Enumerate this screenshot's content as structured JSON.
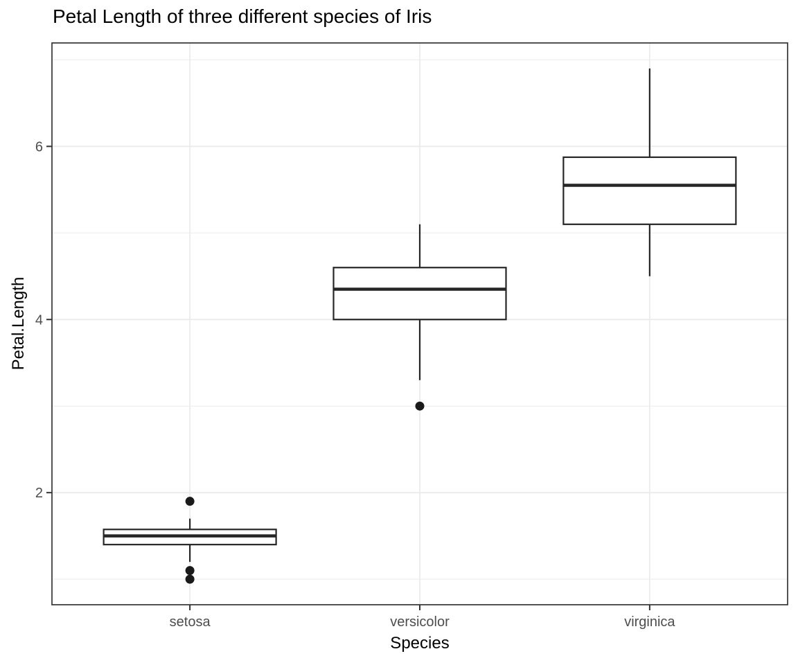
{
  "chart_data": {
    "type": "boxplot",
    "title": "Petal Length of three different species of Iris",
    "xlabel": "Species",
    "ylabel": "Petal.Length",
    "categories": [
      "setosa",
      "versicolor",
      "virginica"
    ],
    "y_ticks": [
      2,
      4,
      6
    ],
    "y_minor_ticks": [
      1,
      3,
      5,
      7
    ],
    "ylim": [
      0.705,
      7.195
    ],
    "grid": "major-and-minor",
    "legend": "none",
    "series": [
      {
        "name": "setosa",
        "whisker_low": 1.2,
        "q1": 1.4,
        "median": 1.5,
        "q3": 1.575,
        "whisker_high": 1.7,
        "outliers": [
          1.9,
          1.1,
          1.0
        ]
      },
      {
        "name": "versicolor",
        "whisker_low": 3.3,
        "q1": 4.0,
        "median": 4.35,
        "q3": 4.6,
        "whisker_high": 5.1,
        "outliers": [
          3.0
        ]
      },
      {
        "name": "virginica",
        "whisker_low": 4.5,
        "q1": 5.1,
        "median": 5.55,
        "q3": 5.875,
        "whisker_high": 6.9,
        "outliers": []
      }
    ],
    "colors": {
      "background": "#ffffff",
      "panel_background": "#ffffff",
      "panel_border": "#333333",
      "grid": "#ebebeb",
      "box_stroke": "#262626",
      "box_fill": "#ffffff",
      "median": "#262626",
      "point": "#1a1a1a",
      "tick": "#333333",
      "tick_label": "#4d4d4d",
      "title": "#000000",
      "axis_title": "#000000"
    }
  }
}
